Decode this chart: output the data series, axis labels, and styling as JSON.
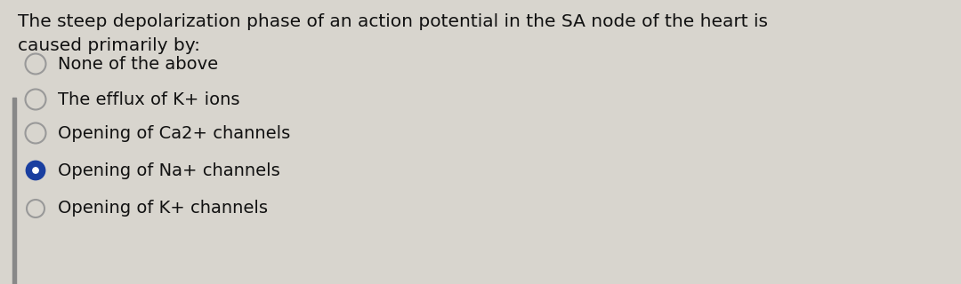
{
  "question_line1": "The steep depolarization phase of an action potential in the SA node of the heart is",
  "question_line2": "caused primarily by:",
  "options": [
    "Opening of K+ channels",
    "Opening of Na+ channels",
    "Opening of Ca2+ channels",
    "The efflux of K+ ions",
    "None of the above"
  ],
  "selected_index": 1,
  "background_color": "#d8d5ce",
  "text_color": "#111111",
  "radio_border_color": "#999999",
  "radio_selected_fill": "#1a3fa0",
  "radio_selected_inner": "#ffffff",
  "left_bar_color": "#888888",
  "font_size_question": 14.5,
  "font_size_options": 14.0
}
